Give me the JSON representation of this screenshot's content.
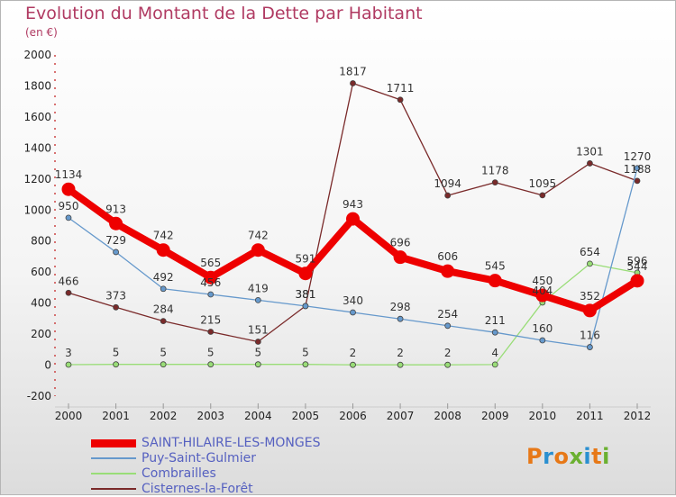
{
  "title": "Evolution du Montant de la Dette par Habitant",
  "unit": "(en €)",
  "logo_text": "Proxiti",
  "chart_data": {
    "type": "line",
    "title": "Evolution du Montant de la Dette par Habitant",
    "ylabel": "(en €)",
    "xlabel": "",
    "x": [
      "2000",
      "2001",
      "2002",
      "2003",
      "2004",
      "2005",
      "2006",
      "2007",
      "2008",
      "2009",
      "2010",
      "2011",
      "2012"
    ],
    "ylim": [
      -200,
      2000
    ],
    "yticks": [
      -200,
      0,
      200,
      400,
      600,
      800,
      1000,
      1200,
      1400,
      1600,
      1800,
      2000
    ],
    "legend_position": "bottom-left",
    "series": [
      {
        "name": "Cisternes-la-Forêt",
        "color": "#7a2a2a",
        "values": [
          466,
          373,
          284,
          215,
          151,
          381,
          1817,
          1711,
          1094,
          1178,
          1095,
          1301,
          1188
        ]
      },
      {
        "name": "Combrailles",
        "color": "#99dd77",
        "values": [
          3,
          5,
          5,
          5,
          5,
          5,
          2,
          2,
          2,
          4,
          404,
          654,
          596
        ]
      },
      {
        "name": "Puy-Saint-Gulmier",
        "color": "#6699cc",
        "values": [
          950,
          729,
          492,
          456,
          419,
          381,
          340,
          298,
          254,
          211,
          160,
          116,
          1270
        ]
      },
      {
        "name": "SAINT-HILAIRE-LES-MONGES",
        "color": "#ee0000",
        "values": [
          1134,
          913,
          742,
          565,
          742,
          591,
          943,
          696,
          606,
          545,
          450,
          352,
          544
        ]
      }
    ]
  }
}
